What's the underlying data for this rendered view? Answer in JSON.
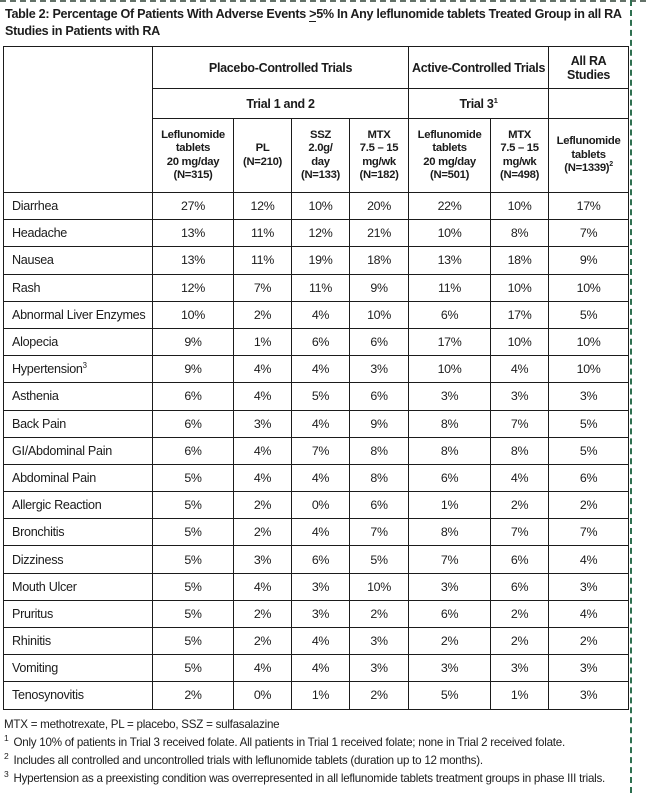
{
  "title": {
    "prefix": "Table 2: Percentage Of Patients With Adverse Events ",
    "gte_symbol": ">",
    "suffix": "5% In Any leflunomide tablets Treated Group in all RA",
    "line2": "Studies in Patients with RA"
  },
  "header": {
    "groups": [
      {
        "label": "Placebo-Controlled Trials"
      },
      {
        "label": "Active-Controlled Trials"
      },
      {
        "lines": [
          "All RA",
          "Studies"
        ]
      }
    ],
    "trials": [
      {
        "label": "Trial 1 and 2",
        "sup": ""
      },
      {
        "label": "Trial 3",
        "sup": "1"
      }
    ],
    "columns": [
      {
        "lines": [
          "Leflunomide",
          "tablets",
          "20 mg/day",
          "(N=315)"
        ],
        "sup": ""
      },
      {
        "lines": [
          "PL",
          "(N=210)"
        ],
        "sup": ""
      },
      {
        "lines": [
          "SSZ",
          "2.0g/",
          "day",
          "(N=133)"
        ],
        "sup": ""
      },
      {
        "lines": [
          "MTX",
          "7.5 – 15",
          "mg/wk",
          "(N=182)"
        ],
        "sup": ""
      },
      {
        "lines": [
          "Leflunomide",
          "tablets",
          "20 mg/day",
          "(N=501)"
        ],
        "sup": ""
      },
      {
        "lines": [
          "MTX",
          "7.5 – 15",
          "mg/wk",
          "(N=498)"
        ],
        "sup": ""
      },
      {
        "lines": [
          "Leflunomide",
          "tablets",
          "(N=1339)"
        ],
        "sup": "2"
      }
    ]
  },
  "rows": [
    {
      "label": "Diarrhea",
      "sup": "",
      "values": [
        "27%",
        "12%",
        "10%",
        "20%",
        "22%",
        "10%",
        "17%"
      ]
    },
    {
      "label": "Headache",
      "sup": "",
      "values": [
        "13%",
        "11%",
        "12%",
        "21%",
        "10%",
        "8%",
        "7%"
      ]
    },
    {
      "label": "Nausea",
      "sup": "",
      "values": [
        "13%",
        "11%",
        "19%",
        "18%",
        "13%",
        "18%",
        "9%"
      ]
    },
    {
      "label": "Rash",
      "sup": "",
      "values": [
        "12%",
        "7%",
        "11%",
        "9%",
        "11%",
        "10%",
        "10%"
      ]
    },
    {
      "label": "Abnormal Liver Enzymes",
      "sup": "",
      "values": [
        "10%",
        "2%",
        "4%",
        "10%",
        "6%",
        "17%",
        "5%"
      ]
    },
    {
      "label": "Alopecia",
      "sup": "",
      "values": [
        "9%",
        "1%",
        "6%",
        "6%",
        "17%",
        "10%",
        "10%"
      ]
    },
    {
      "label": "Hypertension",
      "sup": "3",
      "values": [
        "9%",
        "4%",
        "4%",
        "3%",
        "10%",
        "4%",
        "10%"
      ]
    },
    {
      "label": "Asthenia",
      "sup": "",
      "values": [
        "6%",
        "4%",
        "5%",
        "6%",
        "3%",
        "3%",
        "3%"
      ]
    },
    {
      "label": "Back Pain",
      "sup": "",
      "values": [
        "6%",
        "3%",
        "4%",
        "9%",
        "8%",
        "7%",
        "5%"
      ]
    },
    {
      "label": "GI/Abdominal Pain",
      "sup": "",
      "values": [
        "6%",
        "4%",
        "7%",
        "8%",
        "8%",
        "8%",
        "5%"
      ]
    },
    {
      "label": "Abdominal Pain",
      "sup": "",
      "values": [
        "5%",
        "4%",
        "4%",
        "8%",
        "6%",
        "4%",
        "6%"
      ]
    },
    {
      "label": "Allergic Reaction",
      "sup": "",
      "values": [
        "5%",
        "2%",
        "0%",
        "6%",
        "1%",
        "2%",
        "2%"
      ]
    },
    {
      "label": "Bronchitis",
      "sup": "",
      "values": [
        "5%",
        "2%",
        "4%",
        "7%",
        "8%",
        "7%",
        "7%"
      ]
    },
    {
      "label": "Dizziness",
      "sup": "",
      "values": [
        "5%",
        "3%",
        "6%",
        "5%",
        "7%",
        "6%",
        "4%"
      ]
    },
    {
      "label": "Mouth Ulcer",
      "sup": "",
      "values": [
        "5%",
        "4%",
        "3%",
        "10%",
        "3%",
        "6%",
        "3%"
      ]
    },
    {
      "label": "Pruritus",
      "sup": "",
      "values": [
        "5%",
        "2%",
        "3%",
        "2%",
        "6%",
        "2%",
        "4%"
      ]
    },
    {
      "label": "Rhinitis",
      "sup": "",
      "values": [
        "5%",
        "2%",
        "4%",
        "3%",
        "2%",
        "2%",
        "2%"
      ]
    },
    {
      "label": "Vomiting",
      "sup": "",
      "values": [
        "5%",
        "4%",
        "4%",
        "3%",
        "3%",
        "3%",
        "3%"
      ]
    },
    {
      "label": "Tenosynovitis",
      "sup": "",
      "values": [
        "2%",
        "0%",
        "1%",
        "2%",
        "5%",
        "1%",
        "3%"
      ]
    }
  ],
  "footer": {
    "abbreviations": "MTX = methotrexate, PL = placebo, SSZ = sulfasalazine",
    "footnotes": [
      {
        "sup": "1",
        "text": "Only 10% of patients in Trial 3 received folate. All patients in Trial 1 received folate; none in Trial 2 received folate."
      },
      {
        "sup": "2",
        "text": "Includes all controlled and uncontrolled trials with leflunomide tablets (duration up to 12 months)."
      },
      {
        "sup": "3",
        "text": "Hypertension as a preexisting condition was overrepresented in all leflunomide tablets treatment groups in phase III trials."
      }
    ]
  },
  "colors": {
    "text": "#1b1b1b",
    "border": "#1b1b1b",
    "background": "#ffffff",
    "page_marker_green": "#2e7050"
  }
}
